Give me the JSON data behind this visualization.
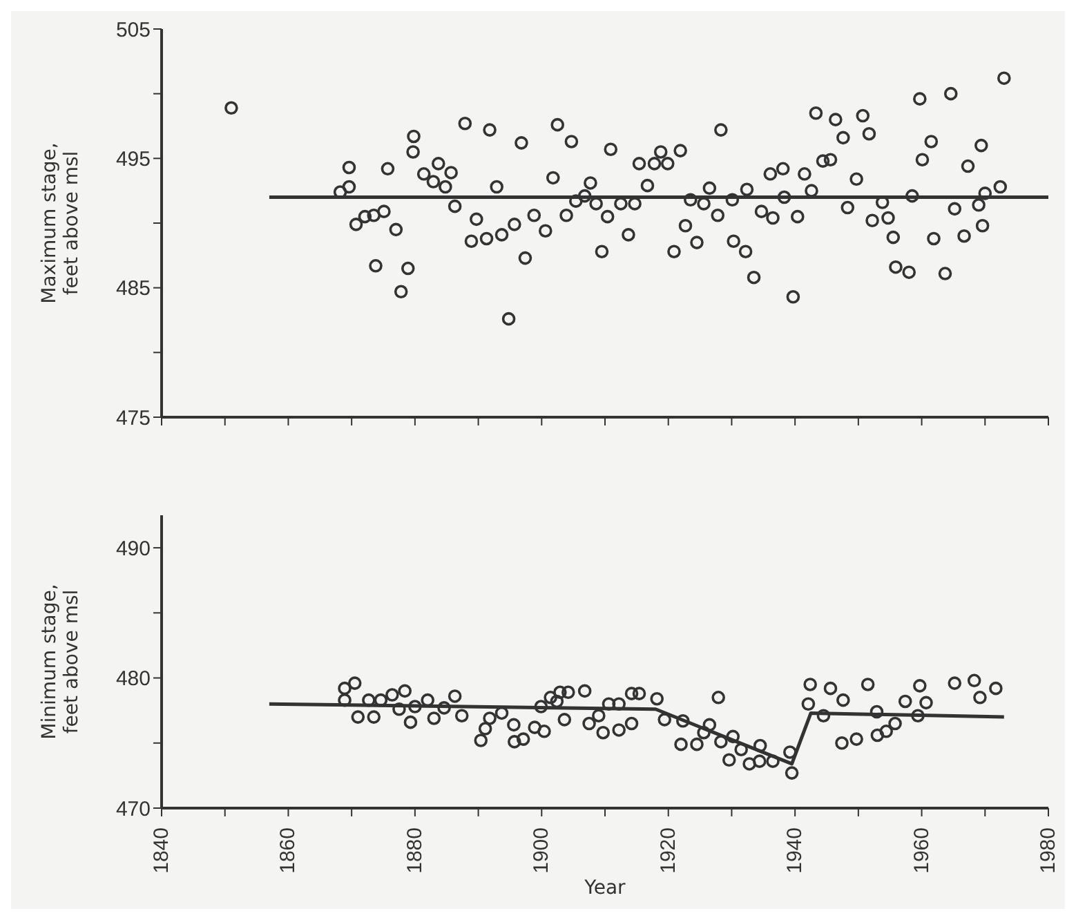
{
  "chart_data": [
    {
      "type": "scatter",
      "ylabel": "Maximum stage,\nfeet above msl",
      "xlim": [
        1840,
        1980
      ],
      "xticks": [
        1840,
        {
          "value": 1850,
          "label": null
        },
        1860,
        {
          "value": 1870,
          "label": null
        },
        1880,
        {
          "value": 1890,
          "label": null
        },
        1900,
        {
          "value": 1910,
          "label": null
        },
        1920,
        {
          "value": 1930,
          "label": null
        },
        1940,
        {
          "value": 1950,
          "label": null
        },
        1960,
        {
          "value": 1970,
          "label": null
        },
        1980
      ],
      "ylim": [
        475,
        505
      ],
      "yticks": [
        475,
        {
          "value": 480,
          "label": null
        },
        485,
        {
          "value": 490,
          "label": null
        },
        495,
        {
          "value": 500,
          "label": null
        },
        505
      ],
      "tick_labels": "y",
      "marker": "circle",
      "series": [
        {
          "color": "#333333",
          "x": [
            1851.0,
            1868.2,
            1869.6,
            1869.6,
            1870.7,
            1872.1,
            1873.5,
            1875.1,
            1875.7,
            1873.8,
            1877.0,
            1878.9,
            1877.8,
            1879.8,
            1879.7,
            1881.4,
            1882.9,
            1883.7,
            1885.7,
            1884.8,
            1886.3,
            1887.9,
            1889.7,
            1888.9,
            1891.3,
            1891.8,
            1892.9,
            1893.7,
            1895.7,
            1894.8,
            1896.8,
            1897.4,
            1898.8,
            1900.6,
            1901.8,
            1902.5,
            1904.7,
            1903.9,
            1905.4,
            1906.8,
            1907.7,
            1908.6,
            1909.5,
            1910.4,
            1910.9,
            1912.5,
            1914.7,
            1913.7,
            1915.4,
            1917.8,
            1918.8,
            1919.9,
            1921.9,
            1916.7,
            1922.7,
            1920.9,
            1923.5,
            1924.5,
            1925.6,
            1926.5,
            1927.8,
            1928.3,
            1930.1,
            1930.3,
            1932.2,
            1932.4,
            1933.5,
            1934.7,
            1936.1,
            1936.5,
            1938.1,
            1938.3,
            1939.7,
            1940.4,
            1941.5,
            1942.6,
            1943.3,
            1944.4,
            1945.6,
            1946.4,
            1947.6,
            1948.3,
            1949.7,
            1950.7,
            1951.7,
            1952.2,
            1953.8,
            1954.7,
            1955.5,
            1955.9,
            1958.0,
            1958.5,
            1959.7,
            1960.1,
            1961.5,
            1961.9,
            1963.7,
            1964.6,
            1965.2,
            1966.7,
            1967.3,
            1969.0,
            1969.6,
            1969.4,
            1970.0,
            1972.4,
            1973.0
          ],
          "values": [
            498.9,
            492.4,
            494.3,
            492.8,
            489.9,
            490.5,
            490.6,
            490.9,
            494.2,
            486.7,
            489.5,
            486.5,
            484.7,
            496.7,
            495.5,
            493.8,
            493.2,
            494.6,
            493.9,
            492.8,
            491.3,
            497.7,
            490.3,
            488.6,
            488.8,
            497.2,
            492.8,
            489.1,
            489.9,
            482.6,
            496.2,
            487.3,
            490.6,
            489.4,
            493.5,
            497.6,
            496.3,
            490.6,
            491.7,
            492.1,
            493.1,
            491.5,
            487.8,
            490.5,
            495.7,
            491.5,
            491.5,
            489.1,
            494.6,
            494.6,
            495.5,
            494.6,
            495.6,
            492.9,
            489.8,
            487.8,
            491.8,
            488.5,
            491.5,
            492.7,
            490.6,
            497.2,
            491.8,
            488.6,
            487.8,
            492.6,
            485.8,
            490.9,
            493.8,
            490.4,
            494.2,
            492.0,
            484.3,
            490.5,
            493.8,
            492.5,
            498.5,
            494.8,
            494.9,
            498.0,
            496.6,
            491.2,
            493.4,
            498.3,
            496.9,
            490.2,
            491.6,
            490.4,
            488.9,
            486.6,
            486.2,
            492.1,
            499.6,
            494.9,
            496.3,
            488.8,
            486.1,
            500.0,
            491.1,
            489.0,
            494.4,
            491.4,
            489.8,
            496.0,
            492.3,
            492.8,
            501.2
          ]
        },
        {
          "type": "line",
          "color": "#333333",
          "marker": "none",
          "x": [
            1857,
            1980
          ],
          "values": [
            492.0,
            492.0
          ]
        }
      ]
    },
    {
      "type": "scatter",
      "ylabel": "Minimum stage,\nfeet above msl",
      "xlabel": "Year",
      "xlim": [
        1840,
        1980
      ],
      "xticks": [
        1840,
        {
          "value": 1850,
          "label": null
        },
        1860,
        {
          "value": 1870,
          "label": null
        },
        1880,
        {
          "value": 1890,
          "label": null
        },
        1900,
        {
          "value": 1910,
          "label": null
        },
        1920,
        {
          "value": 1930,
          "label": null
        },
        1940,
        {
          "value": 1950,
          "label": null
        },
        1960,
        {
          "value": 1970,
          "label": null
        },
        1980
      ],
      "ylim": [
        470,
        492.5
      ],
      "yticks": [
        470,
        {
          "value": 475,
          "label": null
        },
        480,
        {
          "value": 485,
          "label": null
        },
        490
      ],
      "marker": "circle",
      "series": [
        {
          "color": "#333333",
          "x": [
            1868.9,
            1868.9,
            1870.5,
            1871.0,
            1872.7,
            1873.5,
            1874.6,
            1876.4,
            1877.5,
            1878.4,
            1879.3,
            1880.0,
            1882.0,
            1883.0,
            1884.6,
            1886.3,
            1887.4,
            1890.4,
            1891.1,
            1891.8,
            1893.7,
            1895.6,
            1895.7,
            1897.1,
            1898.9,
            1900.4,
            1899.9,
            1901.4,
            1902.4,
            1902.9,
            1903.6,
            1904.2,
            1906.8,
            1907.5,
            1909.0,
            1909.7,
            1910.6,
            1912.2,
            1912.2,
            1914.2,
            1914.2,
            1915.4,
            1918.2,
            1919.4,
            1922.3,
            1922.0,
            1924.5,
            1925.6,
            1926.5,
            1927.9,
            1928.3,
            1930.2,
            1929.6,
            1931.5,
            1932.8,
            1934.5,
            1934.4,
            1936.5,
            1939.2,
            1939.5,
            1942.4,
            1942.1,
            1944.5,
            1945.6,
            1947.6,
            1947.4,
            1949.7,
            1951.5,
            1952.9,
            1953.0,
            1954.4,
            1955.8,
            1957.4,
            1959.4,
            1959.7,
            1960.7,
            1965.2,
            1968.3,
            1969.2,
            1971.7
          ],
          "values": [
            479.2,
            478.3,
            479.6,
            477.0,
            478.3,
            477.0,
            478.3,
            478.7,
            477.6,
            479.0,
            476.6,
            477.8,
            478.3,
            476.9,
            477.7,
            478.6,
            477.1,
            475.2,
            476.1,
            476.9,
            477.3,
            476.4,
            475.1,
            475.3,
            476.2,
            475.9,
            477.8,
            478.5,
            478.2,
            478.9,
            476.8,
            478.9,
            479.0,
            476.5,
            477.1,
            475.8,
            478.0,
            478.0,
            476.0,
            476.5,
            478.8,
            478.8,
            478.4,
            476.8,
            476.7,
            474.9,
            474.9,
            475.8,
            476.4,
            478.5,
            475.1,
            475.5,
            473.7,
            474.5,
            473.4,
            474.8,
            473.6,
            473.6,
            474.3,
            472.7,
            479.5,
            478.0,
            477.1,
            479.2,
            478.3,
            475.0,
            475.3,
            479.5,
            477.4,
            475.6,
            475.9,
            476.5,
            478.2,
            477.1,
            479.4,
            478.1,
            479.6,
            479.8,
            478.5,
            479.2
          ]
        },
        {
          "type": "line",
          "color": "#333333",
          "marker": "none",
          "x": [
            1857,
            1918,
            1939.5,
            1942.5,
            1973
          ],
          "values": [
            478.0,
            477.6,
            473.4,
            477.3,
            477.0
          ]
        }
      ]
    }
  ]
}
